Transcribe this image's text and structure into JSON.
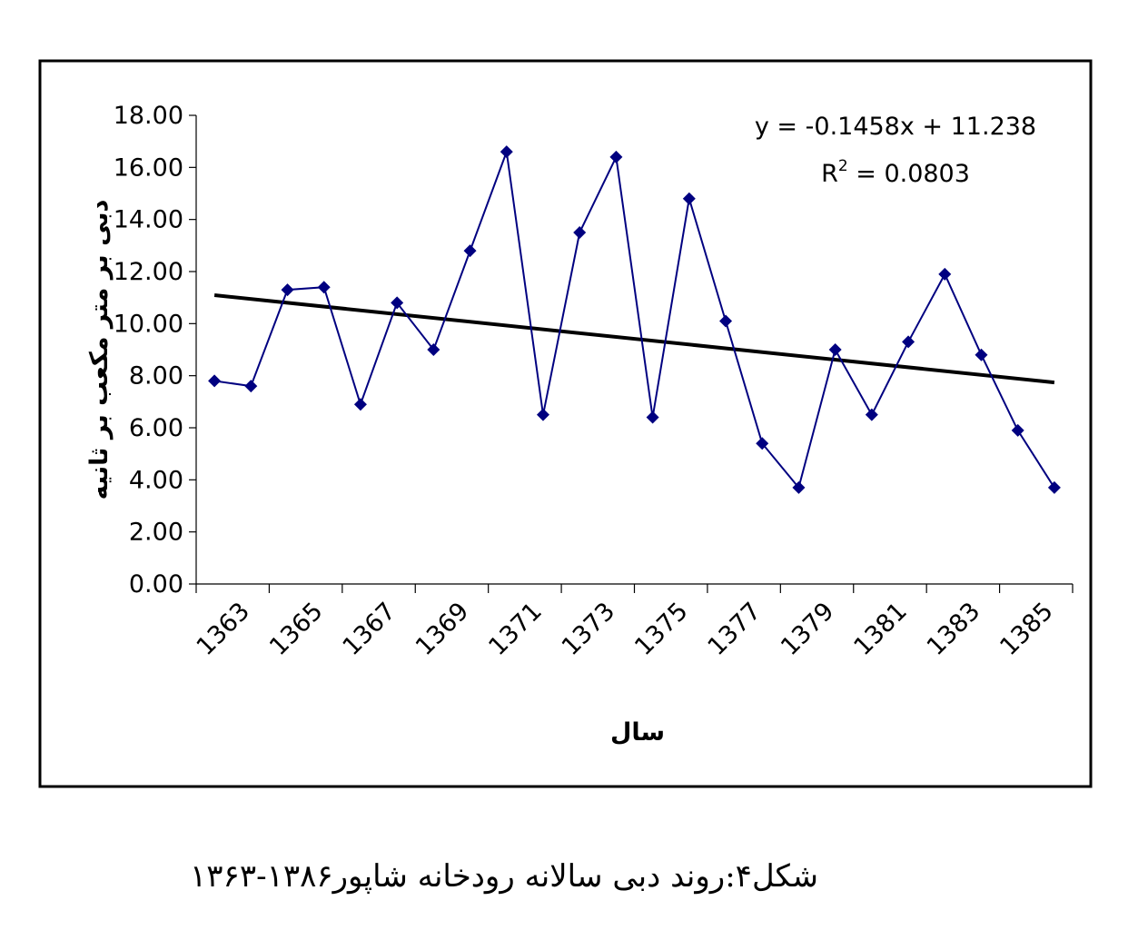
{
  "caption": "شکل۴:روند دبی سالانه رودخانه شاپور۱۳۸۶-۱۳۶۳",
  "chart_data": {
    "type": "line",
    "title": "",
    "xlabel": "سال",
    "ylabel": "دبی بر متر مکعب بر ثانیه",
    "ylim": [
      0,
      18
    ],
    "y_ticks": [
      "0.00",
      "2.00",
      "4.00",
      "6.00",
      "8.00",
      "10.00",
      "12.00",
      "14.00",
      "16.00",
      "18.00"
    ],
    "x_tick_labels": [
      "1363",
      "1365",
      "1367",
      "1369",
      "1371",
      "1373",
      "1375",
      "1377",
      "1379",
      "1381",
      "1383",
      "1385"
    ],
    "x": [
      1363,
      1364,
      1365,
      1366,
      1367,
      1368,
      1369,
      1370,
      1371,
      1372,
      1373,
      1374,
      1375,
      1376,
      1377,
      1378,
      1379,
      1380,
      1381,
      1382,
      1383,
      1384,
      1385,
      1386
    ],
    "series": [
      {
        "values": [
          7.8,
          7.6,
          11.3,
          11.4,
          6.9,
          10.8,
          9.0,
          12.8,
          16.6,
          6.5,
          13.5,
          16.4,
          6.4,
          14.8,
          10.1,
          5.4,
          3.7,
          9.0,
          6.5,
          9.3,
          11.9,
          8.8,
          5.9,
          3.7
        ],
        "color": "#000080"
      }
    ],
    "trendline": {
      "equation": "y = -0.1458x + 11.238",
      "r2_label": "R",
      "r2_sup": "2",
      "r2_value": " = 0.0803",
      "slope": -0.1458,
      "intercept": 11.238,
      "color": "#000000"
    },
    "grid": false,
    "legend": "none"
  }
}
